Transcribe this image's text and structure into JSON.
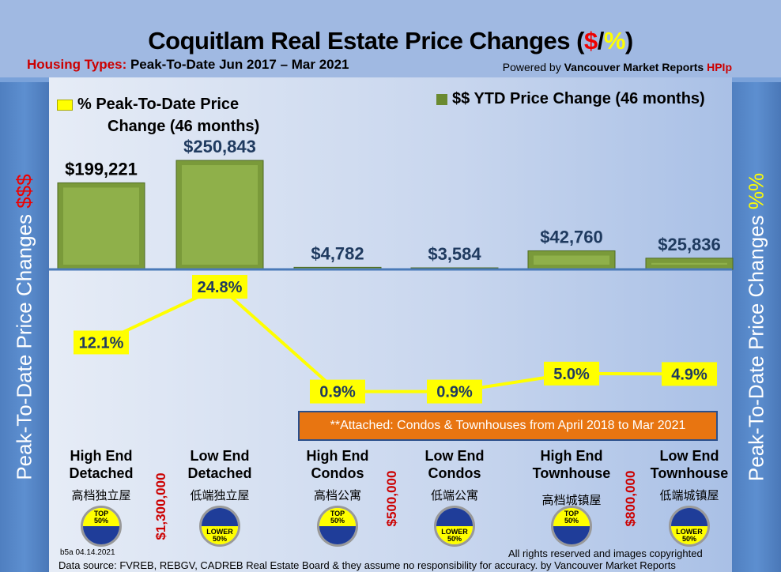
{
  "header": {
    "title_main": "Coquitlam Real Estate Price Changes (",
    "title_dollar": "$",
    "title_slash": "/",
    "title_pct": "%",
    "title_close": ")",
    "subtitle_label": "Housing Types:",
    "subtitle_text": " Peak-To-Date Jun 2017 – Mar 2021",
    "powered_prefix": "Powered by ",
    "powered_brand": "Vancouver Market Reports ",
    "powered_hpi": "HPIp"
  },
  "side": {
    "left": "Peak-To-Date Price Changes ",
    "left_accent": "$$$",
    "right": "Peak-To-Date  Price  Changes  ",
    "right_accent": "%%"
  },
  "note": "**Attached: Condos & Townhouses from April 2018 to Mar 2021",
  "thresholds": [
    "$1,300,000",
    "$500,000",
    "$800,000"
  ],
  "chinese": [
    "高档独立屋",
    "低端独立屋",
    "高档公寓",
    "低端公寓",
    "高档城镇屋",
    "低端城镇屋"
  ],
  "badges": {
    "top": "TOP",
    "lower": "LOWER",
    "pct": "50%"
  },
  "footer": {
    "version": "b5a 04.14.2021",
    "rights": "All rights reserved and  images copyrighted",
    "source": "Data source: FVREB, REBGV, CADREB Real Estate Board & they assume no responsibility for accuracy. by Vancouver Market Reports"
  },
  "colors": {
    "bar": "#7a9a3a",
    "line": "#ffff00",
    "baseline": "#4a7ab8",
    "note": "#e87511"
  },
  "chart_data": {
    "type": "bar+line",
    "categories": [
      "High End Detached",
      "Low End Detached",
      "High End Condos",
      "Low End Condos",
      "High End Townhouse",
      "Low End Townhouse"
    ],
    "series": [
      {
        "name": "$$ YTD Price Change (46 months)",
        "type": "bar",
        "values": [
          199221,
          250843,
          4782,
          3584,
          42760,
          25836
        ],
        "labels": [
          "$199,221",
          "$250,843",
          "$4,782",
          "$3,584",
          "$42,760",
          "$25,836"
        ]
      },
      {
        "name": "% Peak-To-Date Price Change (46 months)",
        "type": "line",
        "values": [
          12.1,
          24.8,
          0.9,
          0.9,
          5.0,
          4.9
        ],
        "labels": [
          "12.1%",
          "24.8%",
          "0.9%",
          "0.9%",
          "5.0%",
          "4.9%"
        ]
      }
    ],
    "legend": [
      "% Peak-To-Date Price",
      "Change (46 months)",
      "$$ YTD Price Change (46 months)"
    ]
  }
}
